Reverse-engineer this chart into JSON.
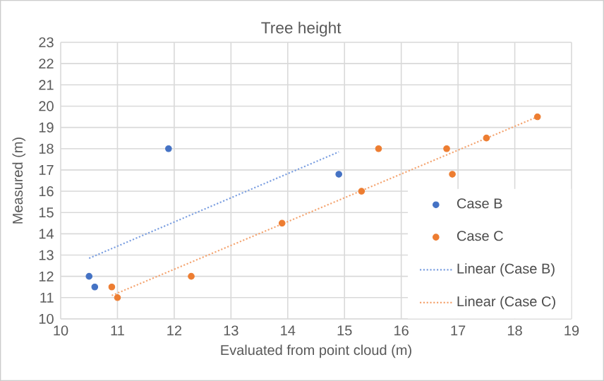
{
  "chart_data": {
    "type": "scatter",
    "title": "Tree height",
    "xlabel": "Evaluated from point cloud (m)",
    "ylabel": "Measured (m)",
    "xlim": [
      10,
      19
    ],
    "ylim": [
      10,
      23
    ],
    "xticks": [
      10,
      11,
      12,
      13,
      14,
      15,
      16,
      17,
      18,
      19
    ],
    "yticks": [
      10,
      11,
      12,
      13,
      14,
      15,
      16,
      17,
      18,
      19,
      20,
      21,
      22,
      23
    ],
    "grid": true,
    "legend": "bottom right",
    "series": [
      {
        "name": "Case B",
        "type": "scatter",
        "marker": "circle",
        "color": "#4472c4",
        "x": [
          10.5,
          10.6,
          11.9,
          14.9
        ],
        "values": [
          12,
          11.5,
          18,
          16.8
        ]
      },
      {
        "name": "Case C",
        "type": "scatter",
        "marker": "circle",
        "color": "#ed7d31",
        "x": [
          10.9,
          11,
          12.3,
          13.9,
          15.3,
          15.6,
          16.8,
          16.9,
          17.5,
          18.4
        ],
        "values": [
          11.5,
          11,
          12,
          14.5,
          16,
          18,
          18,
          16.8,
          18.5,
          19.5
        ]
      },
      {
        "name": "Linear (Case B)",
        "type": "line",
        "marker": "none",
        "line_style": "dotted",
        "color": "#7a9ee0",
        "x": [
          10.5,
          14.9
        ],
        "values": [
          12.85,
          17.85
        ]
      },
      {
        "name": "Linear (Case C)",
        "type": "line",
        "marker": "none",
        "line_style": "dotted",
        "color": "#f4a470",
        "x": [
          10.9,
          18.4
        ],
        "values": [
          11.1,
          19.5
        ]
      }
    ]
  }
}
